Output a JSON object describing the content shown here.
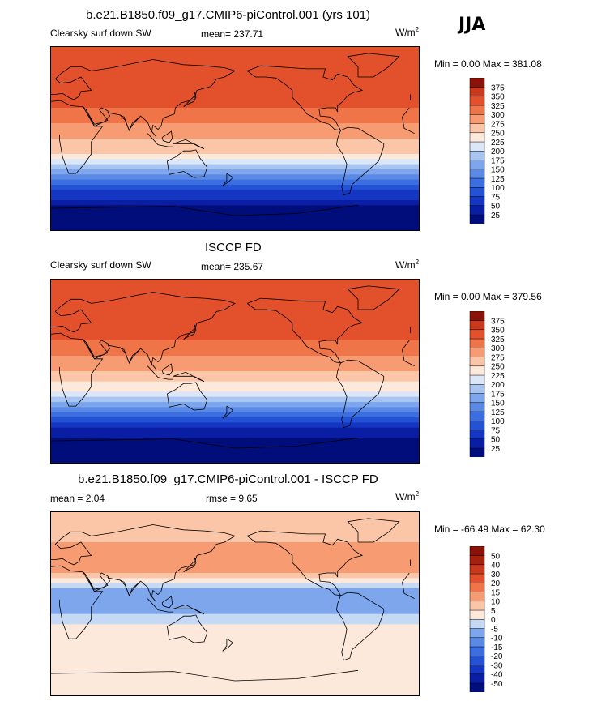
{
  "season": "JJA",
  "colors": {
    "land_outline": "#000000",
    "ramp_warm": [
      "#f7d3c0",
      "#fcb99c",
      "#f99a6f",
      "#f27b4f",
      "#ea5a35",
      "#dd4424",
      "#c8321a",
      "#a92414",
      "#8a140a"
    ],
    "ramp_cool": [
      "#eaf2fb",
      "#c9dcf3",
      "#a7c4ec",
      "#86abe3",
      "#628fd8",
      "#3f70cc",
      "#2452c0",
      "#1036aa",
      "#06208a"
    ]
  },
  "panels": [
    {
      "title": "b.e21.B1850.f09_g17.CMIP6-piControl.001 (yrs 101)",
      "left_label": "Clearsky surf down SW",
      "center_label": "mean= 237.71",
      "units_base": "W/m",
      "units_exp": "2",
      "minmax": "Min =    0.00 Max = 381.08"
    },
    {
      "title": "ISCCP FD",
      "left_label": "Clearsky surf down SW",
      "center_label": "mean= 235.67",
      "units_base": "W/m",
      "units_exp": "2",
      "minmax": "Min =    0.00 Max = 379.56"
    },
    {
      "title": "b.e21.B1850.f09_g17.CMIP6-piControl.001 - ISCCP FD",
      "left_label": "mean =   2.04",
      "center_label": "rmse =   9.65",
      "units_base": "W/m",
      "units_exp": "2",
      "minmax": "Min = -66.49 Max =  62.30"
    }
  ],
  "chart_data": [
    {
      "type": "heatmap",
      "title": "b.e21.B1850.f09_g17.CMIP6-piControl.001 (yrs 101)",
      "variable": "Clearsky surf down SW",
      "mean": 237.71,
      "min": 0.0,
      "max": 381.08,
      "colorbar_levels": [
        25,
        50,
        75,
        100,
        125,
        150,
        175,
        200,
        225,
        250,
        275,
        300,
        325,
        350,
        375
      ],
      "colorbar_colors": [
        "#000d7a",
        "#0a1ea3",
        "#1536c2",
        "#2452d4",
        "#3b6ee0",
        "#5a8ae6",
        "#7ea6ec",
        "#a8c4f1",
        "#dbe6f6",
        "#fde8dc",
        "#fbc5a8",
        "#f79c72",
        "#ef7448",
        "#e2512b",
        "#c83a1d",
        "#8b1208"
      ],
      "latitude_profile": [
        {
          "lat": 80,
          "value": 330
        },
        {
          "lat": 60,
          "value": 335
        },
        {
          "lat": 45,
          "value": 330
        },
        {
          "lat": 30,
          "value": 325
        },
        {
          "lat": 15,
          "value": 300
        },
        {
          "lat": 0,
          "value": 280
        },
        {
          "lat": -15,
          "value": 245
        },
        {
          "lat": -25,
          "value": 200
        },
        {
          "lat": -35,
          "value": 160
        },
        {
          "lat": -45,
          "value": 110
        },
        {
          "lat": -55,
          "value": 60
        },
        {
          "lat": -65,
          "value": 20
        },
        {
          "lat": -80,
          "value": 0
        }
      ]
    },
    {
      "type": "heatmap",
      "title": "ISCCP FD",
      "variable": "Clearsky surf down SW",
      "mean": 235.67,
      "min": 0.0,
      "max": 379.56,
      "colorbar_levels": [
        25,
        50,
        75,
        100,
        125,
        150,
        175,
        200,
        225,
        250,
        275,
        300,
        325,
        350,
        375
      ],
      "colorbar_colors": [
        "#000d7a",
        "#0a1ea3",
        "#1536c2",
        "#2452d4",
        "#3b6ee0",
        "#5a8ae6",
        "#7ea6ec",
        "#a8c4f1",
        "#dbe6f6",
        "#fde8dc",
        "#fbc5a8",
        "#f79c72",
        "#ef7448",
        "#e2512b",
        "#c83a1d",
        "#8b1208"
      ],
      "latitude_profile": [
        {
          "lat": 80,
          "value": 330
        },
        {
          "lat": 60,
          "value": 330
        },
        {
          "lat": 45,
          "value": 325
        },
        {
          "lat": 30,
          "value": 325
        },
        {
          "lat": 15,
          "value": 300
        },
        {
          "lat": 0,
          "value": 280
        },
        {
          "lat": -15,
          "value": 240
        },
        {
          "lat": -25,
          "value": 200
        },
        {
          "lat": -35,
          "value": 155
        },
        {
          "lat": -45,
          "value": 105
        },
        {
          "lat": -55,
          "value": 55
        },
        {
          "lat": -65,
          "value": 20
        },
        {
          "lat": -80,
          "value": 0
        }
      ]
    },
    {
      "type": "heatmap",
      "title": "b.e21.B1850.f09_g17.CMIP6-piControl.001 - ISCCP FD",
      "variable": "difference",
      "mean": 2.04,
      "rmse": 9.65,
      "min": -66.49,
      "max": 62.3,
      "colorbar_levels": [
        -50,
        -40,
        -30,
        -20,
        -15,
        -10,
        -5,
        0,
        5,
        10,
        15,
        20,
        30,
        40,
        50
      ],
      "colorbar_colors": [
        "#000d7a",
        "#0a1ea3",
        "#1536c2",
        "#2452d4",
        "#3b6ee0",
        "#5a8ae6",
        "#7ea6ec",
        "#c5d8f4",
        "#fde8dc",
        "#fbc5a8",
        "#f79c72",
        "#ef7448",
        "#e2512b",
        "#c83a1d",
        "#a5200f",
        "#8b1208"
      ],
      "latitude_profile": [
        {
          "lat": 80,
          "value": 8
        },
        {
          "lat": 60,
          "value": 10
        },
        {
          "lat": 45,
          "value": 12
        },
        {
          "lat": 30,
          "value": 10
        },
        {
          "lat": 15,
          "value": -5
        },
        {
          "lat": 0,
          "value": -8
        },
        {
          "lat": -15,
          "value": -3
        },
        {
          "lat": -25,
          "value": 2
        },
        {
          "lat": -35,
          "value": 3
        },
        {
          "lat": -45,
          "value": 2
        },
        {
          "lat": -55,
          "value": 1
        },
        {
          "lat": -65,
          "value": 0
        },
        {
          "lat": -80,
          "value": 0
        }
      ]
    }
  ]
}
